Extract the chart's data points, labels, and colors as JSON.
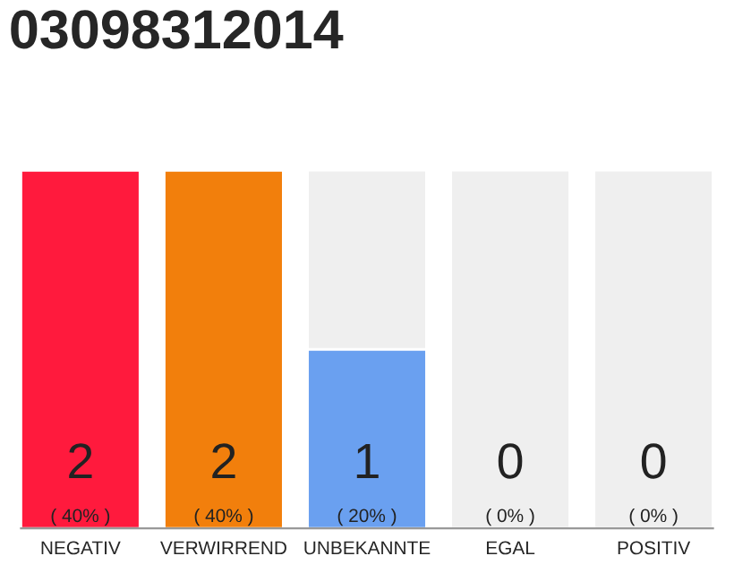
{
  "chart_data": {
    "type": "bar",
    "title": "03098312014",
    "stacked": true,
    "categories": [
      "NEGATIV",
      "VERWIRREND",
      "UNBEKANNTE",
      "EGAL",
      "POSITIV"
    ],
    "series": [
      {
        "colors": [
          "#ff1a3d",
          "#f27f0c",
          "#6aa0f0",
          "#efefef",
          "#efefef"
        ],
        "values": [
          2,
          2,
          1,
          0,
          0
        ],
        "value_labels": [
          "2\n( 40% )",
          "2\n( 40% )",
          "1\n( 20% )",
          "0\n( 0% )",
          "0\n( 0% )"
        ]
      },
      {
        "color": "#efefef",
        "values": [
          0,
          0,
          1,
          2,
          2
        ]
      }
    ],
    "ylim": [
      0,
      2
    ],
    "tick_labels": "x"
  }
}
